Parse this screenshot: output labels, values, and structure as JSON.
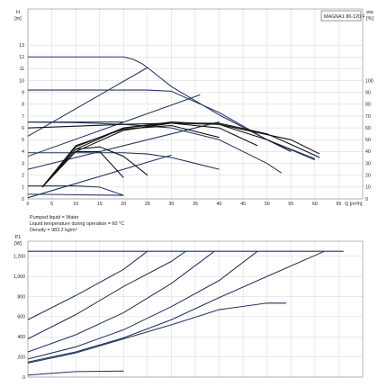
{
  "model": "MAGNA1 80-120 F",
  "notes": [
    "Pumped liquid = Water",
    "Liquid temperature during operation = 60 °C",
    "Density = 983.2 kg/m³"
  ],
  "chart_data": [
    {
      "type": "line",
      "title": "",
      "ylabel_top": "H",
      "ylabel_bottom": "[m]",
      "ylabel_right_top": "eta",
      "ylabel_right_bottom": "[%]",
      "xlabel": "Q [m³/h]",
      "xlim": [
        0,
        70
      ],
      "ylim": [
        0,
        14
      ],
      "y2lim": [
        0,
        140
      ],
      "xticks": [
        0,
        5,
        10,
        15,
        20,
        25,
        30,
        35,
        40,
        45,
        50,
        55,
        60,
        65
      ],
      "yticks": [
        0,
        1,
        2,
        3,
        4,
        5,
        6,
        7,
        8,
        9,
        10,
        11,
        12,
        13
      ],
      "y2ticks": [
        0,
        10,
        20,
        30,
        40,
        50,
        60,
        70,
        80,
        90,
        100
      ],
      "grid": true,
      "head_curves": [
        {
          "x": [
            0,
            10,
            15,
            20,
            22,
            24,
            25,
            30,
            40,
            50,
            60
          ],
          "y": [
            12,
            12,
            12,
            12,
            11.8,
            11.4,
            11.1,
            9.5,
            7.1,
            5.0,
            3.4
          ]
        },
        {
          "x": [
            0,
            10,
            15,
            20,
            25,
            30,
            40,
            50,
            60
          ],
          "y": [
            9.2,
            9.2,
            9.2,
            9.2,
            9.2,
            9.1,
            7.3,
            5.0,
            3.3
          ]
        },
        {
          "x": [
            0,
            10,
            20,
            30,
            40,
            50,
            53
          ],
          "y": [
            6.5,
            6.45,
            6.3,
            6.0,
            5.0,
            3.0,
            2.2
          ]
        },
        {
          "x": [
            0,
            10,
            20,
            25,
            30,
            35,
            40
          ],
          "y": [
            3.9,
            3.9,
            3.9,
            3.8,
            3.5,
            3.0,
            2.5
          ]
        },
        {
          "x": [
            0,
            10,
            15,
            20
          ],
          "y": [
            1.1,
            1.1,
            1.0,
            0.3
          ]
        }
      ],
      "control_curves": [
        {
          "x": [
            0,
            25
          ],
          "y": [
            5.3,
            11.1
          ]
        },
        {
          "x": [
            0,
            36
          ],
          "y": [
            3.6,
            8.8
          ]
        },
        {
          "x": [
            0,
            40
          ],
          "y": [
            2.5,
            6.5
          ]
        },
        {
          "x": [
            0,
            30
          ],
          "y": [
            0.1,
            3.7
          ]
        },
        {
          "x": [
            0,
            20
          ],
          "y": [
            6.5,
            6.5
          ]
        },
        {
          "x": [
            0,
            20
          ],
          "y": [
            0.4,
            0.3
          ]
        }
      ],
      "efficiency_curves": [
        {
          "x": [
            3,
            10,
            20,
            30,
            40,
            50,
            55,
            61
          ],
          "y": [
            10,
            40,
            58,
            64,
            64,
            55,
            46,
            35
          ]
        },
        {
          "x": [
            3,
            10,
            20,
            30,
            40,
            50,
            55
          ],
          "y": [
            10,
            42,
            60,
            65,
            63,
            50,
            40
          ]
        },
        {
          "x": [
            3,
            10,
            20,
            30,
            40,
            48
          ],
          "y": [
            10,
            44,
            60,
            64,
            60,
            45
          ]
        },
        {
          "x": [
            3,
            10,
            20,
            30,
            40
          ],
          "y": [
            10,
            45,
            59,
            62,
            52
          ]
        },
        {
          "x": [
            3,
            10,
            15,
            20,
            25
          ],
          "y": [
            10,
            42,
            44,
            36,
            20
          ]
        },
        {
          "x": [
            3,
            10,
            15,
            20
          ],
          "y": [
            10,
            40,
            40,
            18
          ]
        },
        {
          "x": [
            0,
            20,
            30,
            40,
            55,
            61
          ],
          "y": [
            60,
            63,
            64,
            63,
            50,
            38
          ]
        }
      ]
    },
    {
      "type": "line",
      "title": "",
      "ylabel_top": "P1",
      "ylabel_bottom": "[W]",
      "xlabel": "",
      "xlim": [
        0,
        70
      ],
      "ylim": [
        0,
        1350
      ],
      "yticks": [
        0,
        200,
        400,
        600,
        800,
        1000,
        1200
      ],
      "ytick_labels": [
        "0",
        "200",
        "400",
        "600",
        "800",
        "1,000",
        "1,200"
      ],
      "grid": true,
      "series": [
        {
          "x": [
            0,
            10,
            20,
            25
          ],
          "y": [
            570,
            810,
            1070,
            1250
          ]
        },
        {
          "x": [
            0,
            10,
            20,
            30,
            33
          ],
          "y": [
            380,
            620,
            900,
            1150,
            1250
          ]
        },
        {
          "x": [
            0,
            10,
            20,
            30,
            39
          ],
          "y": [
            250,
            420,
            640,
            930,
            1250
          ]
        },
        {
          "x": [
            0,
            10,
            20,
            30,
            40,
            48
          ],
          "y": [
            180,
            300,
            470,
            700,
            960,
            1250
          ]
        },
        {
          "x": [
            0,
            10,
            20,
            30,
            40,
            50,
            62
          ],
          "y": [
            150,
            250,
            390,
            570,
            790,
            1000,
            1250
          ]
        },
        {
          "x": [
            0,
            10,
            20,
            30,
            40,
            50,
            54
          ],
          "y": [
            140,
            240,
            380,
            520,
            670,
            735,
            735
          ]
        },
        {
          "x": [
            0,
            10,
            20
          ],
          "y": [
            20,
            55,
            60
          ]
        },
        {
          "x": [
            0,
            10,
            20,
            25,
            40,
            60,
            66
          ],
          "y": [
            1250,
            1250,
            1250,
            1250,
            1250,
            1250,
            1250
          ]
        }
      ]
    }
  ]
}
